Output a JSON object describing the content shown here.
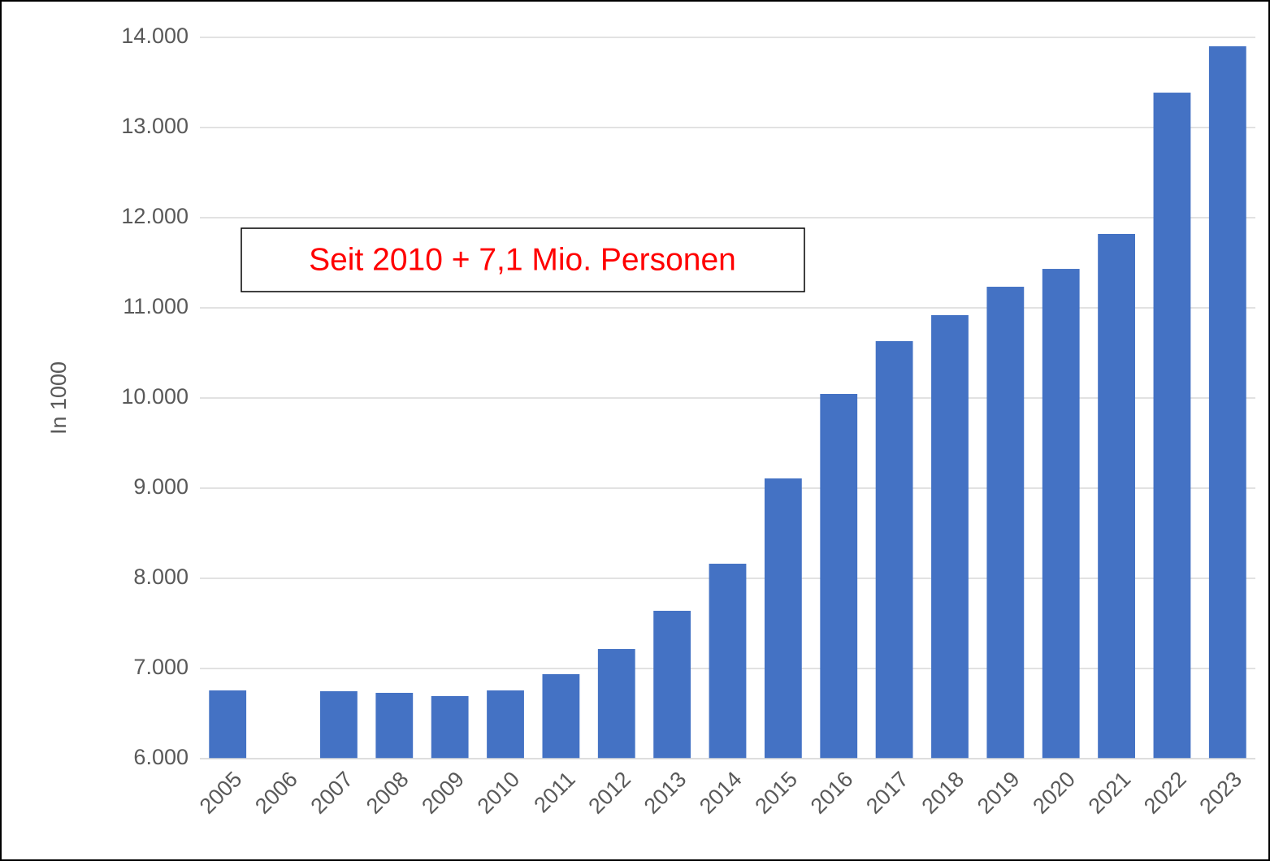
{
  "chart_data": {
    "type": "bar",
    "y_label": "In 1000",
    "annotation": "Seit 2010 + 7,1 Mio. Personen",
    "categories": [
      "2005",
      "2006",
      "2007",
      "2008",
      "2009",
      "2010",
      "2011",
      "2012",
      "2013",
      "2014",
      "2015",
      "2016",
      "2017",
      "2018",
      "2019",
      "2020",
      "2021",
      "2022",
      "2023"
    ],
    "values": [
      6757,
      null,
      6748,
      6730,
      6694,
      6757,
      6937,
      7216,
      7640,
      8162,
      9108,
      10045,
      10631,
      10919,
      11234,
      11432,
      11820,
      13387,
      13901
    ],
    "color": "#4472c4",
    "ylim": [
      6000,
      14000
    ],
    "yticks": [
      {
        "value": 6000,
        "label": "6.000"
      },
      {
        "value": 7000,
        "label": "7.000"
      },
      {
        "value": 8000,
        "label": "8.000"
      },
      {
        "value": 9000,
        "label": "9.000"
      },
      {
        "value": 10000,
        "label": "10.000"
      },
      {
        "value": 11000,
        "label": "11.000"
      },
      {
        "value": 12000,
        "label": "12.000"
      },
      {
        "value": 13000,
        "label": "13.000"
      },
      {
        "value": 14000,
        "label": "14.000"
      }
    ],
    "grid": true
  }
}
